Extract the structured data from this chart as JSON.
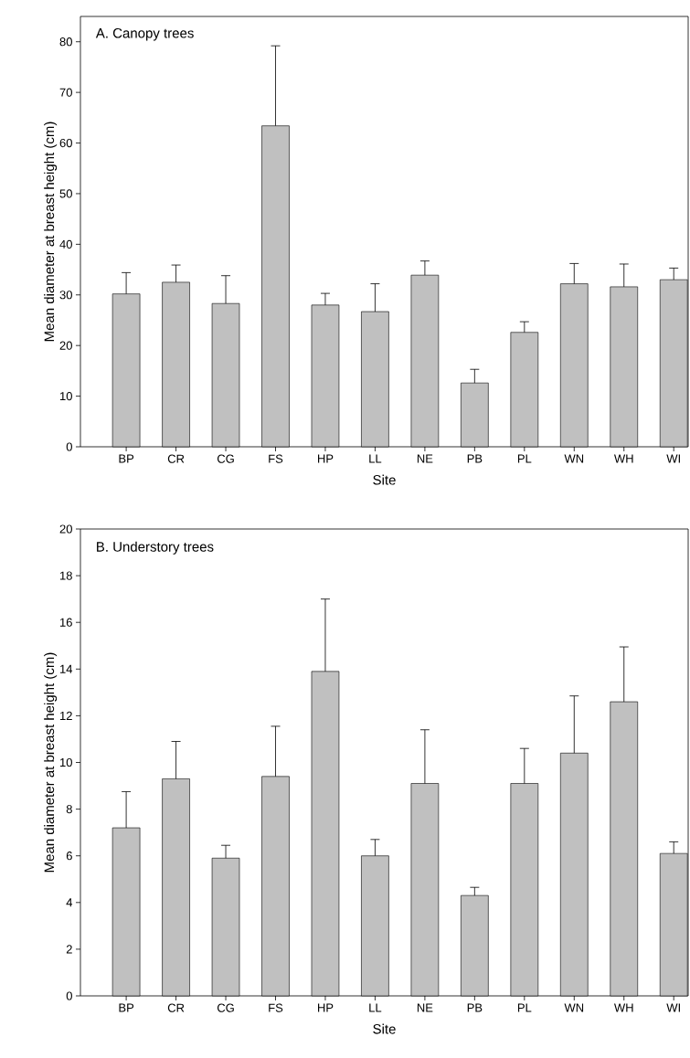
{
  "chart_data": [
    {
      "type": "bar",
      "title": "A. Canopy trees",
      "xlabel": "Site",
      "ylabel": "Mean diameter at breast height (cm)",
      "categories": [
        "BP",
        "CR",
        "CG",
        "FS",
        "HP",
        "LL",
        "NE",
        "PB",
        "PL",
        "WN",
        "WH",
        "WI"
      ],
      "values": [
        30.2,
        32.5,
        28.3,
        63.4,
        28.0,
        26.7,
        33.9,
        12.6,
        22.6,
        32.2,
        31.6,
        33.0
      ],
      "errors": [
        [
          30.2,
          34.4
        ],
        [
          32.5,
          35.9
        ],
        [
          28.3,
          33.8
        ],
        [
          63.4,
          79.2
        ],
        [
          28.0,
          30.3
        ],
        [
          26.7,
          32.2
        ],
        [
          33.9,
          36.7
        ],
        [
          12.6,
          15.3
        ],
        [
          22.6,
          24.7
        ],
        [
          32.2,
          36.2
        ],
        [
          31.6,
          36.1
        ],
        [
          33.0,
          35.3
        ]
      ],
      "color": "#c0c0c0",
      "ylim": [
        0,
        85
      ],
      "yticks": [
        0,
        10,
        20,
        30,
        40,
        50,
        60,
        70,
        80
      ]
    },
    {
      "type": "bar",
      "title": "B. Understory trees",
      "xlabel": "Site",
      "ylabel": "Mean diameter at breast height (cm)",
      "categories": [
        "BP",
        "CR",
        "CG",
        "FS",
        "HP",
        "LL",
        "NE",
        "PB",
        "PL",
        "WN",
        "WH",
        "WI"
      ],
      "values": [
        7.2,
        9.3,
        5.9,
        9.4,
        13.9,
        6.0,
        9.1,
        4.3,
        9.1,
        10.4,
        12.6,
        6.1
      ],
      "errors": [
        [
          7.2,
          8.75
        ],
        [
          9.3,
          10.9
        ],
        [
          5.9,
          6.45
        ],
        [
          9.4,
          11.55
        ],
        [
          13.9,
          17.0
        ],
        [
          6.0,
          6.7
        ],
        [
          9.1,
          11.4
        ],
        [
          4.3,
          4.65
        ],
        [
          9.1,
          10.6
        ],
        [
          10.4,
          12.85
        ],
        [
          12.6,
          14.95
        ],
        [
          6.1,
          6.6
        ]
      ],
      "color": "#c0c0c0",
      "ylim": [
        0,
        20
      ],
      "yticks": [
        0,
        2,
        4,
        6,
        8,
        10,
        12,
        14,
        16,
        18,
        20
      ]
    }
  ]
}
